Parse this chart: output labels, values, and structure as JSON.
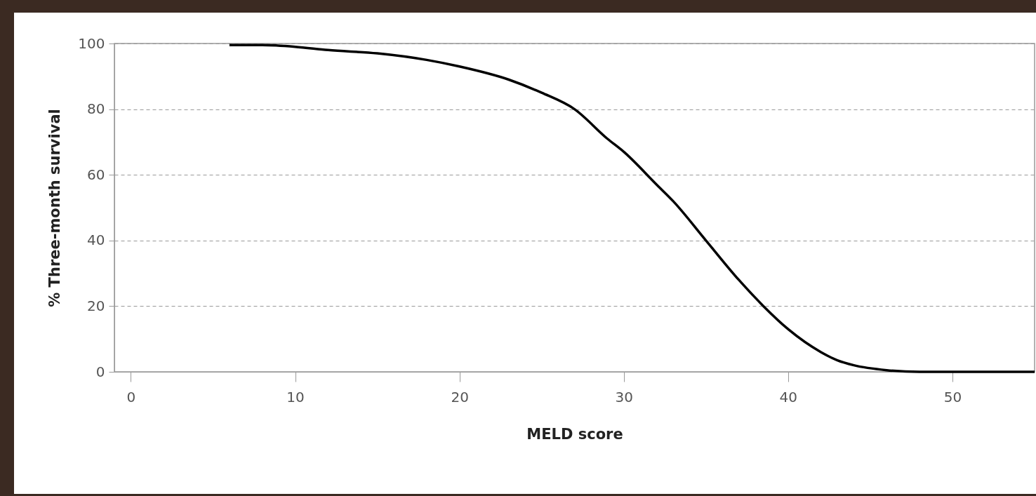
{
  "chart_data": {
    "type": "line",
    "xlabel": "MELD score",
    "ylabel": "% Three-month survival",
    "series": [
      {
        "color": "#000000",
        "x": [
          6,
          8,
          10,
          12,
          15,
          18,
          20,
          23,
          25,
          27,
          29,
          30,
          32,
          33,
          35,
          37,
          38.5,
          40,
          42,
          43,
          44,
          46,
          48,
          50,
          55
        ],
        "values": [
          99.5,
          99.5,
          99,
          98,
          97,
          95,
          93,
          89,
          85,
          80,
          71,
          67,
          57,
          52,
          40,
          28,
          20,
          13,
          6,
          3.5,
          2,
          0.5,
          0,
          0,
          0
        ]
      }
    ],
    "xlim": [
      -1,
      55
    ],
    "ylim": [
      0,
      100
    ],
    "xticks": [
      0,
      10,
      20,
      30,
      40,
      50
    ],
    "yticks": [
      0,
      20,
      40,
      60,
      80,
      100
    ],
    "grid": "y",
    "line_style": "solid",
    "marker": "none"
  }
}
